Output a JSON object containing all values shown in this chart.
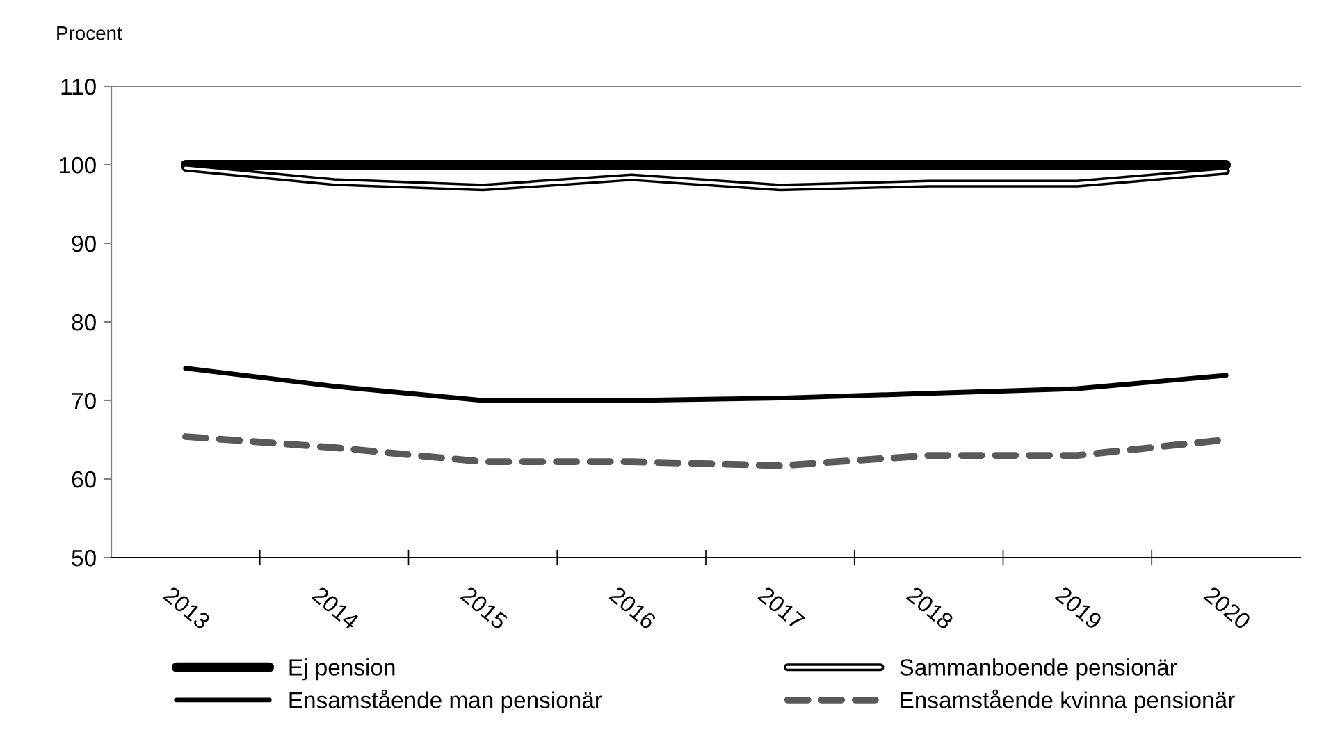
{
  "chart_data": {
    "type": "line",
    "ylabel": "Procent",
    "categories": [
      "2013",
      "2014",
      "2015",
      "2016",
      "2017",
      "2018",
      "2019",
      "2020"
    ],
    "ylim": [
      50,
      110
    ],
    "yticks": [
      50,
      60,
      70,
      80,
      90,
      100,
      110
    ],
    "grid": false,
    "legend": "bottom",
    "marker": "none",
    "series": [
      {
        "name": "Ej pension",
        "color": "#000000",
        "line_style": "solid",
        "values": [
          100,
          100,
          100,
          100,
          100,
          100,
          100,
          100
        ]
      },
      {
        "name": "Sammanboende pensionär",
        "color": "#000000",
        "line_style": "solid",
        "values": [
          99.6,
          97.8,
          97.1,
          98.4,
          97.1,
          97.6,
          97.6,
          99.2
        ]
      },
      {
        "name": "Ensamstående man pensionär",
        "color": "#000000",
        "line_style": "solid",
        "values": [
          74.1,
          71.8,
          70.0,
          70.0,
          70.3,
          70.9,
          71.5,
          73.2
        ]
      },
      {
        "name": "Ensamstående kvinna pensionär",
        "color": "#595959",
        "line_style": "dashed",
        "values": [
          65.4,
          64.0,
          62.2,
          62.2,
          61.7,
          63.0,
          63.0,
          65.0
        ]
      }
    ]
  }
}
